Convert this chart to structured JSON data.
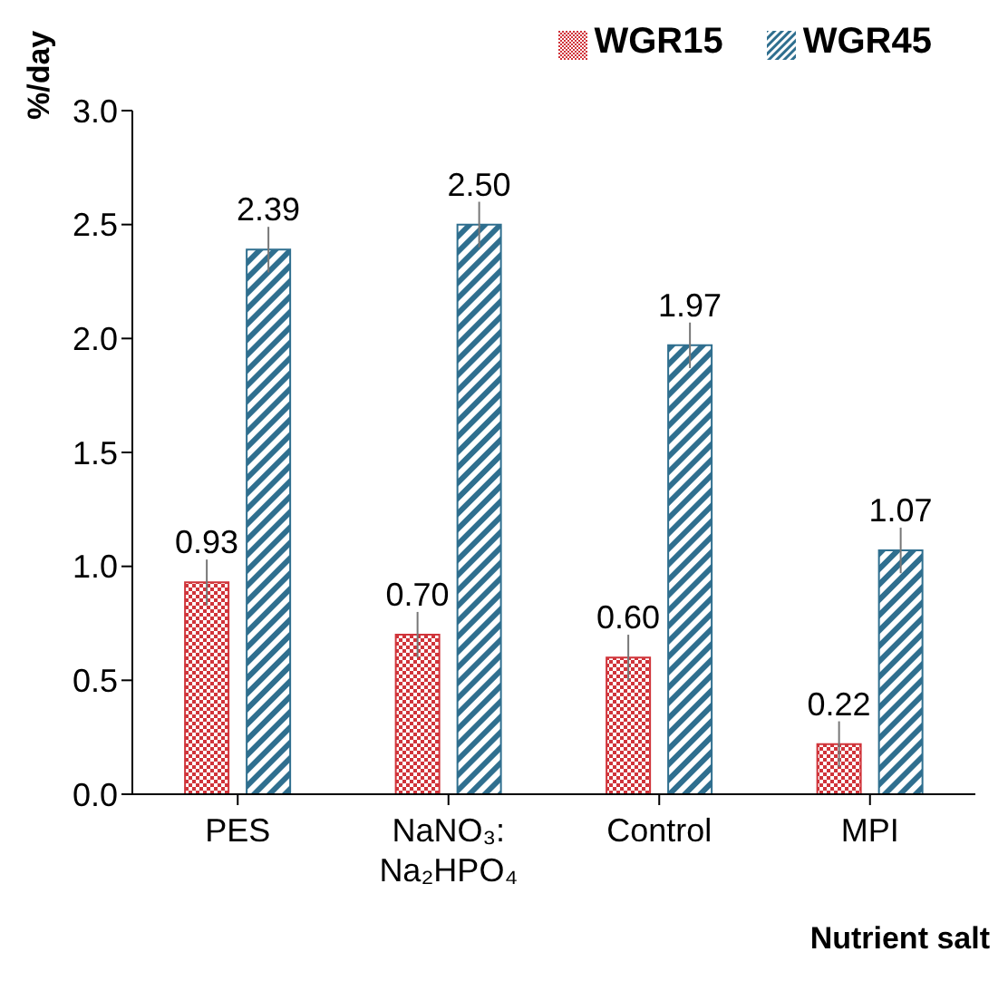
{
  "chart_data": {
    "type": "bar",
    "ylabel": "%/day",
    "xlabel": "Nutrient salt",
    "categories": [
      "PES",
      "NaNO₃:\nNa₂HPO₄",
      "Control",
      "MPI"
    ],
    "series": [
      {
        "name": "WGR15",
        "color": "#d0343a",
        "values": [
          0.93,
          0.7,
          0.6,
          0.22
        ],
        "errors": [
          0.1,
          0.1,
          0.1,
          0.1
        ],
        "value_labels": [
          "0.93",
          "0.70",
          "0.60",
          "0.22"
        ]
      },
      {
        "name": "WGR45",
        "color": "#2f6f8f",
        "values": [
          2.39,
          2.5,
          1.97,
          1.07
        ],
        "errors": [
          0.1,
          0.1,
          0.1,
          0.1
        ],
        "value_labels": [
          "2.39",
          "2.50",
          "1.97",
          "1.07"
        ]
      }
    ],
    "ylim": [
      0,
      3
    ],
    "yticks": [
      {
        "value": 0,
        "label": "0.0"
      },
      {
        "value": 0.5,
        "label": "0.5"
      },
      {
        "value": 1,
        "label": "1.0"
      },
      {
        "value": 1.5,
        "label": "1.5"
      },
      {
        "value": 2,
        "label": "2.0"
      },
      {
        "value": 2.5,
        "label": "2.5"
      },
      {
        "value": 3,
        "label": "3.0"
      }
    ],
    "grid": false,
    "legend": "top right"
  }
}
